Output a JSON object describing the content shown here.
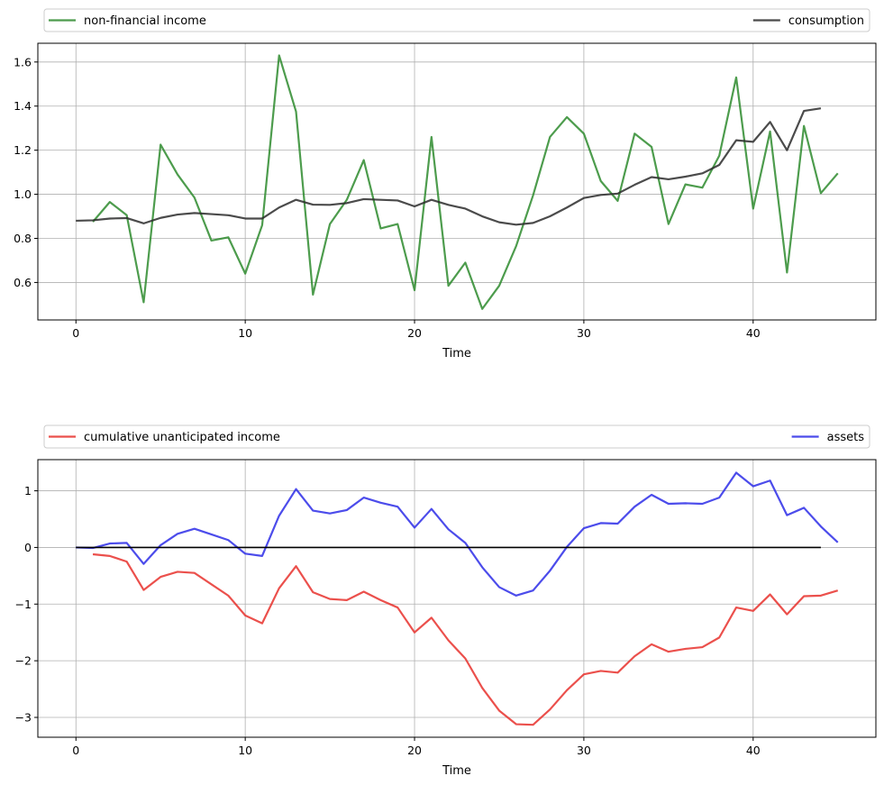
{
  "chart_data": [
    {
      "type": "line",
      "xlabel": "Time",
      "ylabel": "",
      "xlim": [
        -2.25,
        47.25
      ],
      "ylim": [
        0.43,
        1.685
      ],
      "xticks": [
        0,
        10,
        20,
        30,
        40
      ],
      "yticks": [
        0.6,
        0.8,
        1.0,
        1.2,
        1.4,
        1.6
      ],
      "ytick_labels": [
        "0.6",
        "0.8",
        "1.0",
        "1.2",
        "1.4",
        "1.6"
      ],
      "grid": true,
      "legend_position": "above-plot",
      "series": [
        {
          "name": "non-financial income",
          "color": "#2e8b2e",
          "x": [
            1,
            2,
            3,
            4,
            5,
            6,
            7,
            8,
            9,
            10,
            11,
            12,
            13,
            14,
            15,
            16,
            17,
            18,
            19,
            20,
            21,
            22,
            23,
            24,
            25,
            26,
            27,
            28,
            29,
            30,
            31,
            32,
            33,
            34,
            35,
            36,
            37,
            38,
            39,
            40,
            41,
            42,
            43,
            44,
            45
          ],
          "values": [
            0.875,
            0.965,
            0.905,
            0.51,
            1.225,
            1.09,
            0.985,
            0.79,
            0.805,
            0.64,
            0.86,
            1.63,
            1.375,
            0.545,
            0.865,
            0.975,
            1.155,
            0.845,
            0.865,
            0.565,
            1.26,
            0.585,
            0.69,
            0.48,
            0.585,
            0.765,
            0.995,
            1.26,
            1.35,
            1.275,
            1.06,
            0.97,
            1.275,
            1.215,
            0.865,
            1.045,
            1.03,
            1.175,
            1.53,
            0.935,
            1.285,
            0.645,
            1.31,
            1.005,
            1.095
          ]
        },
        {
          "name": "consumption",
          "color": "#2b2b2b",
          "x": [
            0,
            1,
            2,
            3,
            4,
            5,
            6,
            7,
            8,
            9,
            10,
            11,
            12,
            13,
            14,
            15,
            16,
            17,
            18,
            19,
            20,
            21,
            22,
            23,
            24,
            25,
            26,
            27,
            28,
            29,
            30,
            31,
            32,
            33,
            34,
            35,
            36,
            37,
            38,
            39,
            40,
            41,
            42,
            43,
            44
          ],
          "values": [
            0.88,
            0.882,
            0.89,
            0.892,
            0.868,
            0.893,
            0.908,
            0.915,
            0.91,
            0.905,
            0.89,
            0.89,
            0.94,
            0.975,
            0.953,
            0.952,
            0.96,
            0.978,
            0.975,
            0.972,
            0.945,
            0.975,
            0.952,
            0.935,
            0.9,
            0.873,
            0.862,
            0.87,
            0.9,
            0.94,
            0.983,
            0.997,
            1.003,
            1.043,
            1.078,
            1.068,
            1.08,
            1.095,
            1.133,
            1.245,
            1.238,
            1.328,
            1.2,
            1.378,
            1.39
          ]
        }
      ]
    },
    {
      "type": "line",
      "xlabel": "Time",
      "ylabel": "",
      "xlim": [
        -2.25,
        47.25
      ],
      "ylim": [
        -3.35,
        1.55
      ],
      "xticks": [
        0,
        10,
        20,
        30,
        40
      ],
      "yticks": [
        -3,
        -2,
        -1,
        0,
        1
      ],
      "ytick_labels": [
        "−3",
        "−2",
        "−1",
        "0",
        "1"
      ],
      "grid": true,
      "legend_position": "above-plot",
      "series": [
        {
          "name": "cumulative unanticipated income",
          "color": "#e8312d",
          "x": [
            1,
            2,
            3,
            4,
            5,
            6,
            7,
            8,
            9,
            10,
            11,
            12,
            13,
            14,
            15,
            16,
            17,
            18,
            19,
            20,
            21,
            22,
            23,
            24,
            25,
            26,
            27,
            28,
            29,
            30,
            31,
            32,
            33,
            34,
            35,
            36,
            37,
            38,
            39,
            40,
            41,
            42,
            43,
            44,
            45
          ],
          "values": [
            -0.12,
            -0.15,
            -0.25,
            -0.75,
            -0.52,
            -0.43,
            -0.45,
            -0.65,
            -0.85,
            -1.2,
            -1.34,
            -0.72,
            -0.33,
            -0.79,
            -0.91,
            -0.93,
            -0.78,
            -0.93,
            -1.06,
            -1.5,
            -1.24,
            -1.64,
            -1.96,
            -2.48,
            -2.88,
            -3.12,
            -3.13,
            -2.86,
            -2.52,
            -2.24,
            -2.18,
            -2.21,
            -1.92,
            -1.71,
            -1.84,
            -1.79,
            -1.76,
            -1.59,
            -1.06,
            -1.12,
            -0.83,
            -1.18,
            -0.86,
            -0.85,
            -0.76
          ]
        },
        {
          "name": "assets",
          "color": "#2d2de8",
          "x": [
            0,
            1,
            2,
            3,
            4,
            5,
            6,
            7,
            8,
            9,
            10,
            11,
            12,
            13,
            14,
            15,
            16,
            17,
            18,
            19,
            20,
            21,
            22,
            23,
            24,
            25,
            26,
            27,
            28,
            29,
            30,
            31,
            32,
            33,
            34,
            35,
            36,
            37,
            38,
            39,
            40,
            41,
            42,
            43,
            44,
            45
          ],
          "values": [
            0.0,
            -0.01,
            0.07,
            0.08,
            -0.29,
            0.04,
            0.24,
            0.33,
            0.23,
            0.13,
            -0.11,
            -0.15,
            0.56,
            1.03,
            0.65,
            0.6,
            0.66,
            0.88,
            0.79,
            0.72,
            0.35,
            0.68,
            0.32,
            0.08,
            -0.35,
            -0.7,
            -0.85,
            -0.76,
            -0.41,
            0.01,
            0.34,
            0.43,
            0.42,
            0.72,
            0.93,
            0.77,
            0.78,
            0.77,
            0.88,
            1.32,
            1.08,
            1.18,
            0.57,
            0.7,
            0.37,
            0.09
          ]
        },
        {
          "name": "zero line",
          "color": "#000000",
          "legend": false,
          "x": [
            0,
            44
          ],
          "values": [
            0,
            0
          ]
        }
      ]
    }
  ]
}
